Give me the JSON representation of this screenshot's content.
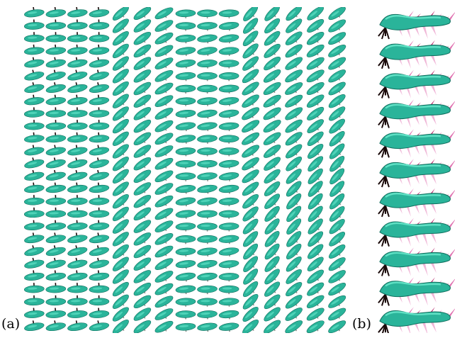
{
  "labels": {
    "a": "(a)",
    "b": "(b)"
  },
  "colors": {
    "body": "#2ab49a",
    "body_edge": "#0f6f5e",
    "highlight": "#5fe0c4",
    "stem_dark": "#1a0a0a",
    "stem_grey": "#8a8f8a",
    "spike_pink": "#e070b0",
    "spike_magenta": "#b0105a",
    "spike_light": "#f0b8d8"
  },
  "panel_a": {
    "rows": 26,
    "cols": 15
  },
  "panel_b": {
    "segments": 11
  }
}
